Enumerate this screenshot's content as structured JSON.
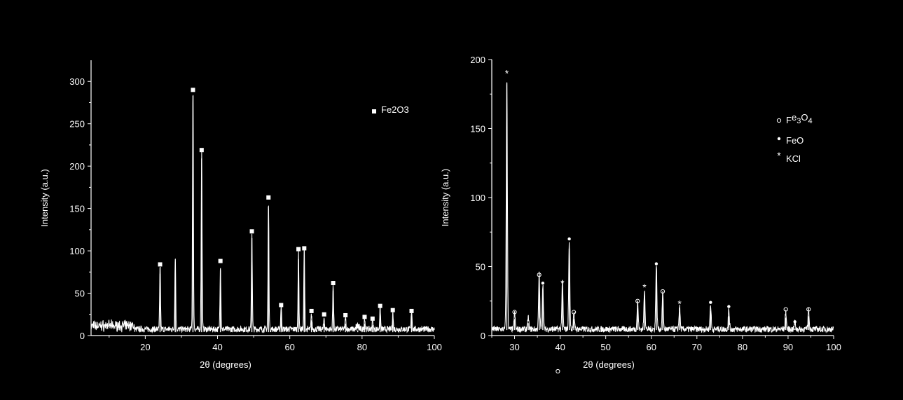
{
  "chart_data": [
    {
      "type": "line",
      "xlabel": "2θ (degrees)",
      "ylabel": "Intensity (a.u.)",
      "xlim": [
        5,
        100
      ],
      "ylim": [
        0,
        325
      ],
      "xticks": [
        20,
        40,
        60,
        80,
        100
      ],
      "yticks": [
        0,
        50,
        100,
        150,
        200,
        250,
        300
      ],
      "legend": [
        {
          "symbol": "square",
          "label": "Fe2O3"
        }
      ],
      "legend_position": "top-right",
      "peaks": [
        {
          "x": 24.1,
          "y": 73
        },
        {
          "x": 28.3,
          "y": 87
        },
        {
          "x": 33.2,
          "y": 283
        },
        {
          "x": 35.6,
          "y": 209
        },
        {
          "x": 40.8,
          "y": 77
        },
        {
          "x": 49.5,
          "y": 115
        },
        {
          "x": 54.1,
          "y": 150
        },
        {
          "x": 57.6,
          "y": 28
        },
        {
          "x": 62.4,
          "y": 90
        },
        {
          "x": 64.0,
          "y": 95
        },
        {
          "x": 66.0,
          "y": 18
        },
        {
          "x": 69.5,
          "y": 14
        },
        {
          "x": 72.0,
          "y": 53
        },
        {
          "x": 75.4,
          "y": 14
        },
        {
          "x": 78.8,
          "y": 6
        },
        {
          "x": 80.7,
          "y": 14
        },
        {
          "x": 82.9,
          "y": 12
        },
        {
          "x": 85.0,
          "y": 26
        },
        {
          "x": 88.5,
          "y": 20
        },
        {
          "x": 93.7,
          "y": 24
        }
      ],
      "markers": [
        {
          "x": 24.1,
          "y": 84,
          "symbol": "square"
        },
        {
          "x": 33.2,
          "y": 290,
          "symbol": "square"
        },
        {
          "x": 35.6,
          "y": 219,
          "symbol": "square"
        },
        {
          "x": 40.8,
          "y": 88,
          "symbol": "square"
        },
        {
          "x": 49.5,
          "y": 123,
          "symbol": "square"
        },
        {
          "x": 54.1,
          "y": 163,
          "symbol": "square"
        },
        {
          "x": 57.6,
          "y": 36,
          "symbol": "square"
        },
        {
          "x": 62.4,
          "y": 102,
          "symbol": "square"
        },
        {
          "x": 64.0,
          "y": 103,
          "symbol": "square"
        },
        {
          "x": 66.0,
          "y": 29,
          "symbol": "square"
        },
        {
          "x": 69.5,
          "y": 25,
          "symbol": "square"
        },
        {
          "x": 72.0,
          "y": 62,
          "symbol": "square"
        },
        {
          "x": 75.4,
          "y": 24,
          "symbol": "square"
        },
        {
          "x": 78.8,
          "y": 11,
          "symbol": "square"
        },
        {
          "x": 80.7,
          "y": 22,
          "symbol": "square"
        },
        {
          "x": 82.9,
          "y": 20,
          "symbol": "square"
        },
        {
          "x": 85.0,
          "y": 35,
          "symbol": "square"
        },
        {
          "x": 88.5,
          "y": 30,
          "symbol": "square"
        },
        {
          "x": 93.7,
          "y": 29,
          "symbol": "square"
        }
      ]
    },
    {
      "type": "line",
      "xlabel": "2θ (degrees)",
      "ylabel": "Intensity (a.u.)",
      "xlim": [
        25,
        100
      ],
      "ylim": [
        0,
        200
      ],
      "xticks": [
        30,
        40,
        50,
        60,
        70,
        80,
        90,
        100
      ],
      "yticks": [
        0,
        50,
        100,
        150,
        200
      ],
      "legend": [
        {
          "symbol": "circle-open",
          "label": "Fe3O4"
        },
        {
          "symbol": "dot",
          "label": "FeO"
        },
        {
          "symbol": "star",
          "label": "KCl"
        }
      ],
      "legend_position": "top-right",
      "peaks": [
        {
          "x": 28.3,
          "y": 183
        },
        {
          "x": 30.0,
          "y": 12
        },
        {
          "x": 33.0,
          "y": 9
        },
        {
          "x": 35.4,
          "y": 40
        },
        {
          "x": 36.2,
          "y": 33
        },
        {
          "x": 40.5,
          "y": 34
        },
        {
          "x": 42.0,
          "y": 63
        },
        {
          "x": 43.0,
          "y": 12
        },
        {
          "x": 57.0,
          "y": 20
        },
        {
          "x": 58.5,
          "y": 29
        },
        {
          "x": 61.1,
          "y": 47
        },
        {
          "x": 62.5,
          "y": 27
        },
        {
          "x": 66.2,
          "y": 17
        },
        {
          "x": 73.0,
          "y": 18
        },
        {
          "x": 77.0,
          "y": 14
        },
        {
          "x": 89.5,
          "y": 13
        },
        {
          "x": 91.5,
          "y": 5
        },
        {
          "x": 94.5,
          "y": 14
        }
      ],
      "markers": [
        {
          "x": 28.3,
          "y": 190,
          "symbol": "star"
        },
        {
          "x": 30.0,
          "y": 17,
          "symbol": "circle-open"
        },
        {
          "x": 35.4,
          "y": 44,
          "symbol": "circle-open"
        },
        {
          "x": 36.2,
          "y": 38,
          "symbol": "dot"
        },
        {
          "x": 40.5,
          "y": 38,
          "symbol": "star"
        },
        {
          "x": 42.0,
          "y": 70,
          "symbol": "dot"
        },
        {
          "x": 43.0,
          "y": 17,
          "symbol": "circle-open"
        },
        {
          "x": 57.0,
          "y": 25,
          "symbol": "circle-open"
        },
        {
          "x": 58.5,
          "y": 35,
          "symbol": "star"
        },
        {
          "x": 61.1,
          "y": 52,
          "symbol": "dot"
        },
        {
          "x": 62.5,
          "y": 32,
          "symbol": "circle-open"
        },
        {
          "x": 66.2,
          "y": 23,
          "symbol": "star"
        },
        {
          "x": 73.0,
          "y": 24,
          "symbol": "dot"
        },
        {
          "x": 77.0,
          "y": 21,
          "symbol": "dot"
        },
        {
          "x": 89.5,
          "y": 19,
          "symbol": "circle-open"
        },
        {
          "x": 91.5,
          "y": 10,
          "symbol": "dot"
        },
        {
          "x": 94.5,
          "y": 19,
          "symbol": "circle-open"
        }
      ]
    }
  ],
  "extra_markers": [
    {
      "symbol": "circle-open",
      "below_axis_x": 39.5
    }
  ]
}
